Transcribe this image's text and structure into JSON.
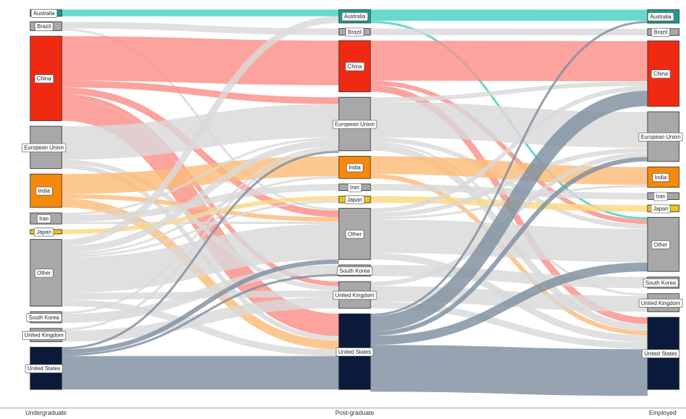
{
  "axis_labels": [
    "Undergraduate",
    "Post-graduate",
    "Employed"
  ],
  "colors": {
    "Australia": "#1a9e8a",
    "Brazil": "#a8a8a8",
    "China": "#f02a12",
    "European Union": "#a8a8a8",
    "India": "#f7890a",
    "Iran": "#a8a8a8",
    "Japan": "#f2c21a",
    "Other": "#a8a8a8",
    "South Korea": "#a8a8a8",
    "United Kingdom": "#a8a8a8",
    "United States": "#0b1a3a"
  },
  "flow_colors": {
    "Australia": "#48cfc5",
    "Brazil": "#d9d9d9",
    "China": "#fa8f86",
    "European Union": "#d9d9d9",
    "India": "#fcbc78",
    "Iran": "#d9d9d9",
    "Japan": "#fbd883",
    "Other": "#d9d9d9",
    "South Korea": "#d9d9d9",
    "United Kingdom": "#d9d9d9",
    "United States": "#7f8fa0"
  },
  "columns": [
    {
      "name": "Undergraduate",
      "nodes": [
        {
          "label": "Australia",
          "value": 3
        },
        {
          "label": "Brazil",
          "value": 4
        },
        {
          "label": "China",
          "value": 38
        },
        {
          "label": "European Union",
          "value": 19
        },
        {
          "label": "India",
          "value": 15
        },
        {
          "label": "Iran",
          "value": 5
        },
        {
          "label": "Japan",
          "value": 2
        },
        {
          "label": "Other",
          "value": 30
        },
        {
          "label": "South Korea",
          "value": 5
        },
        {
          "label": "United Kingdom",
          "value": 6
        },
        {
          "label": "United States",
          "value": 19
        }
      ]
    },
    {
      "name": "Post-graduate",
      "nodes": [
        {
          "label": "Australia",
          "value": 6
        },
        {
          "label": "Brazil",
          "value": 3
        },
        {
          "label": "China",
          "value": 23
        },
        {
          "label": "European Union",
          "value": 24
        },
        {
          "label": "India",
          "value": 10
        },
        {
          "label": "Iran",
          "value": 3
        },
        {
          "label": "Japan",
          "value": 3
        },
        {
          "label": "Other",
          "value": 23
        },
        {
          "label": "South Korea",
          "value": 5
        },
        {
          "label": "United Kingdom",
          "value": 12
        },
        {
          "label": "United States",
          "value": 34
        }
      ]
    },
    {
      "name": "Employed",
      "nodes": [
        {
          "label": "Australia",
          "value": 6
        },
        {
          "label": "Brazil",
          "value": 3
        },
        {
          "label": "China",
          "value": 29
        },
        {
          "label": "European Union",
          "value": 22
        },
        {
          "label": "India",
          "value": 9
        },
        {
          "label": "Iran",
          "value": 3
        },
        {
          "label": "Japan",
          "value": 3
        },
        {
          "label": "Other",
          "value": 24
        },
        {
          "label": "South Korea",
          "value": 5
        },
        {
          "label": "United Kingdom",
          "value": 8
        },
        {
          "label": "United States",
          "value": 32
        }
      ]
    }
  ],
  "links": [
    [
      {
        "source": "Australia",
        "target": "Australia",
        "value": 3
      },
      {
        "source": "Brazil",
        "target": "Brazil",
        "value": 3
      },
      {
        "source": "Brazil",
        "target": "Other",
        "value": 1
      },
      {
        "source": "China",
        "target": "China",
        "value": 20
      },
      {
        "source": "China",
        "target": "European Union",
        "value": 3
      },
      {
        "source": "China",
        "target": "Other",
        "value": 3
      },
      {
        "source": "China",
        "target": "United Kingdom",
        "value": 2
      },
      {
        "source": "China",
        "target": "United States",
        "value": 10
      },
      {
        "source": "European Union",
        "target": "European Union",
        "value": 15
      },
      {
        "source": "European Union",
        "target": "United Kingdom",
        "value": 2
      },
      {
        "source": "European Union",
        "target": "United States",
        "value": 2
      },
      {
        "source": "India",
        "target": "India",
        "value": 9
      },
      {
        "source": "India",
        "target": "Other",
        "value": 2
      },
      {
        "source": "India",
        "target": "United States",
        "value": 4
      },
      {
        "source": "Iran",
        "target": "Iran",
        "value": 3
      },
      {
        "source": "Iran",
        "target": "European Union",
        "value": 1
      },
      {
        "source": "Iran",
        "target": "Other",
        "value": 1
      },
      {
        "source": "Japan",
        "target": "Japan",
        "value": 2
      },
      {
        "source": "Other",
        "target": "Other",
        "value": 16
      },
      {
        "source": "Other",
        "target": "European Union",
        "value": 3
      },
      {
        "source": "Other",
        "target": "Australia",
        "value": 3
      },
      {
        "source": "Other",
        "target": "United Kingdom",
        "value": 3
      },
      {
        "source": "Other",
        "target": "United States",
        "value": 3
      },
      {
        "source": "Other",
        "target": "India",
        "value": 1
      },
      {
        "source": "Other",
        "target": "Japan",
        "value": 1
      },
      {
        "source": "South Korea",
        "target": "South Korea",
        "value": 4
      },
      {
        "source": "South Korea",
        "target": "European Union",
        "value": 1
      },
      {
        "source": "United Kingdom",
        "target": "United Kingdom",
        "value": 5
      },
      {
        "source": "United Kingdom",
        "target": "European Union",
        "value": 1
      },
      {
        "source": "United States",
        "target": "United States",
        "value": 15
      },
      {
        "source": "United States",
        "target": "European Union",
        "value": 1
      },
      {
        "source": "United States",
        "target": "South Korea",
        "value": 1
      },
      {
        "source": "United States",
        "target": "Other",
        "value": 2
      }
    ],
    [
      {
        "source": "Australia",
        "target": "Australia",
        "value": 5
      },
      {
        "source": "Australia",
        "target": "Other",
        "value": 1
      },
      {
        "source": "Brazil",
        "target": "Brazil",
        "value": 3
      },
      {
        "source": "China",
        "target": "China",
        "value": 18
      },
      {
        "source": "China",
        "target": "United States",
        "value": 3
      },
      {
        "source": "China",
        "target": "Other",
        "value": 2
      },
      {
        "source": "European Union",
        "target": "European Union",
        "value": 16
      },
      {
        "source": "European Union",
        "target": "China",
        "value": 2
      },
      {
        "source": "European Union",
        "target": "United States",
        "value": 3
      },
      {
        "source": "European Union",
        "target": "Other",
        "value": 2
      },
      {
        "source": "European Union",
        "target": "United Kingdom",
        "value": 1
      },
      {
        "source": "India",
        "target": "India",
        "value": 8
      },
      {
        "source": "India",
        "target": "United States",
        "value": 2
      },
      {
        "source": "Iran",
        "target": "Iran",
        "value": 3
      },
      {
        "source": "Japan",
        "target": "Japan",
        "value": 3
      },
      {
        "source": "Other",
        "target": "Other",
        "value": 15
      },
      {
        "source": "Other",
        "target": "European Union",
        "value": 2
      },
      {
        "source": "Other",
        "target": "China",
        "value": 2
      },
      {
        "source": "Other",
        "target": "United States",
        "value": 3
      },
      {
        "source": "Other",
        "target": "India",
        "value": 1
      },
      {
        "source": "South Korea",
        "target": "South Korea",
        "value": 5
      },
      {
        "source": "United Kingdom",
        "target": "United Kingdom",
        "value": 7
      },
      {
        "source": "United Kingdom",
        "target": "European Union",
        "value": 2
      },
      {
        "source": "United Kingdom",
        "target": "United States",
        "value": 3
      },
      {
        "source": "United States",
        "target": "United States",
        "value": 21
      },
      {
        "source": "United States",
        "target": "European Union",
        "value": 2
      },
      {
        "source": "United States",
        "target": "China",
        "value": 7
      },
      {
        "source": "United States",
        "target": "Other",
        "value": 4
      },
      {
        "source": "United States",
        "target": "Australia",
        "value": 1
      }
    ]
  ]
}
